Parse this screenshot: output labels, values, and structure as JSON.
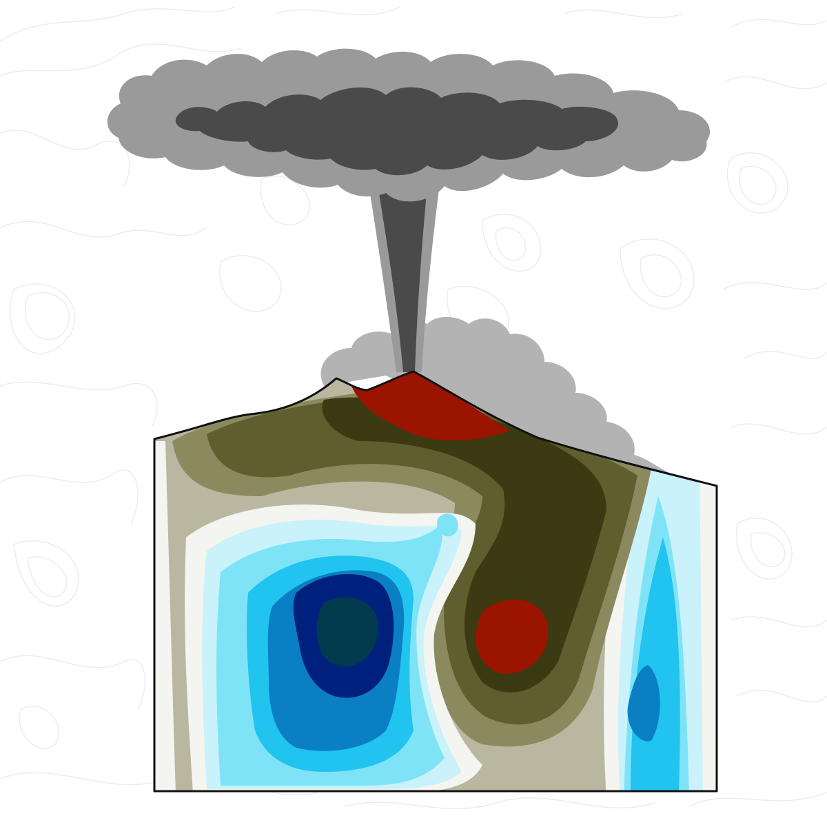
{
  "illustration": {
    "subject": "volcano-eruption-cross-section",
    "text_labels": []
  },
  "palette": {
    "background": "#ffffff",
    "topo_contour": "#ececec",
    "plume_outer": "#9a9a9a",
    "plume_inner": "#4a4a4a",
    "ash_cloud": "#b3b3b3",
    "lava": "#9b1400",
    "outline": "#111111",
    "earth_dark": "#3b3a12",
    "earth_mid": "#5f5e2e",
    "earth_light": "#8b8a5e",
    "earth_pale": "#b9b7a0",
    "near_white": "#f4f4f0",
    "cyan_pale": "#c9f2fb",
    "cyan": "#7fe3f8",
    "sky_blue": "#21c3ef",
    "blue": "#0a7fc3",
    "navy": "#00207e",
    "deep_teal": "#023a4e"
  },
  "cross_section": {
    "scale": "diverging",
    "low_end": "blue",
    "high_end": "red"
  }
}
